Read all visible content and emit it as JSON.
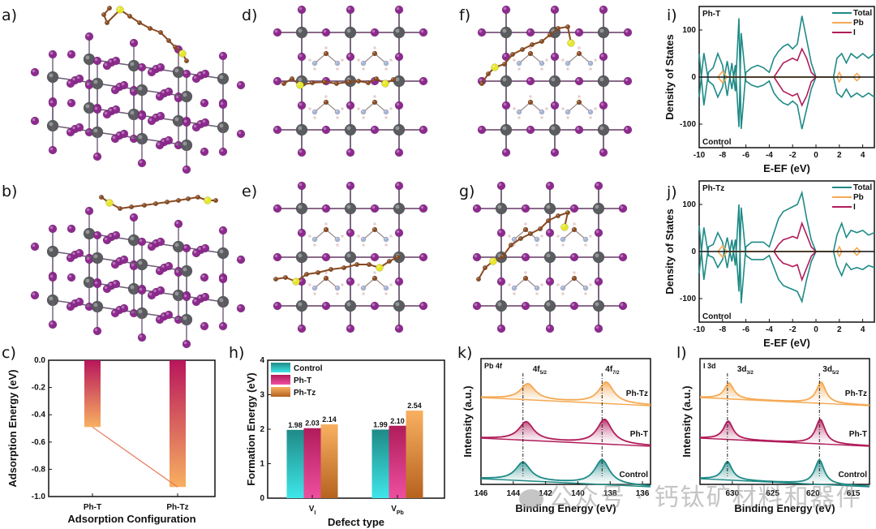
{
  "panel_labels": {
    "a": "a)",
    "b": "b)",
    "c": "c)",
    "d": "d)",
    "e": "e)",
    "f": "f)",
    "g": "g)",
    "h": "h)",
    "i": "i)",
    "j": "j)",
    "k": "k)",
    "l": "l)"
  },
  "colors": {
    "pb_atom": "#5a5c60",
    "i_atom": "#8e2a8f",
    "c_atom": "#8a4b22",
    "s_atom": "#e6e62a",
    "n_atom": "#a8b4d6",
    "h_atom": "#e8cfcf",
    "teal": "#1e8a86",
    "orange": "#f5a953",
    "crimson": "#b01c5a",
    "pink": "#ee4fa0",
    "cyan": "#3fe6ea",
    "brown": "#b6621f"
  },
  "structures": [
    {
      "id": "a",
      "view": "perspective",
      "adsorbate": "Ph-T"
    },
    {
      "id": "b",
      "view": "perspective",
      "adsorbate": "Ph-Tz"
    },
    {
      "id": "d",
      "view": "top",
      "adsorbate": "Ph-T",
      "defect": "flat"
    },
    {
      "id": "e",
      "view": "top",
      "adsorbate": "Ph-Tz",
      "defect": "flat"
    },
    {
      "id": "f",
      "view": "top",
      "adsorbate": "Ph-T",
      "defect": "tilted"
    },
    {
      "id": "g",
      "view": "top",
      "adsorbate": "Ph-Tz",
      "defect": "tilted"
    }
  ],
  "chart_data": [
    {
      "id": "c",
      "type": "bar",
      "title": "",
      "xlabel": "Adsorption Configuration",
      "ylabel": "Adsorption Energy (eV)",
      "categories": [
        "Ph-T",
        "Ph-Tz"
      ],
      "values": [
        -0.49,
        -0.93
      ],
      "ylim": [
        -1.0,
        0.0
      ],
      "yticks": [
        "0.0",
        "-0.2",
        "-0.4",
        "-0.6",
        "-0.8",
        "-1.0"
      ],
      "connector_line": true
    },
    {
      "id": "h",
      "type": "bar",
      "xlabel": "Defect type",
      "ylabel": "Formation Energy (eV)",
      "categories": [
        "V_I",
        "V_Pb"
      ],
      "category_labels": [
        {
          "main": "V",
          "sub": "I"
        },
        {
          "main": "V",
          "sub": "Pb"
        }
      ],
      "series": [
        {
          "name": "Control",
          "values": [
            1.98,
            1.99
          ],
          "data_labels": [
            "1.98",
            "1.99"
          ]
        },
        {
          "name": "Ph-T",
          "values": [
            2.03,
            2.1
          ],
          "data_labels": [
            "2.03",
            "2.10"
          ]
        },
        {
          "name": "Ph-Tz",
          "values": [
            2.14,
            2.54
          ],
          "data_labels": [
            "2.14",
            "2.54"
          ]
        }
      ],
      "ylim": [
        0,
        4
      ],
      "yticks": [
        "0",
        "1",
        "2",
        "3",
        "4"
      ],
      "legend": "top-left"
    },
    {
      "id": "i",
      "type": "line",
      "xlabel": "E-EF (eV)",
      "ylabel": "Density of States",
      "annotation_top": "Ph-T",
      "annotation_bottom": "Control",
      "xlim": [
        -10,
        5
      ],
      "ylim": [
        -150,
        150
      ],
      "xticks": [
        "-10",
        "-8",
        "-6",
        "-4",
        "-2",
        "0",
        "2",
        "4"
      ],
      "yticks": [
        "100",
        "0",
        "-100"
      ],
      "legend": "top-right",
      "series": [
        {
          "name": "Total"
        },
        {
          "name": "Pb"
        },
        {
          "name": "I"
        }
      ],
      "total_peaks": [
        [
          -10,
          50
        ],
        [
          -9.6,
          -60
        ],
        [
          -9.2,
          10
        ],
        [
          -8.8,
          20
        ],
        [
          -8.4,
          50
        ],
        [
          -8,
          25
        ],
        [
          -7.6,
          -40
        ],
        [
          -7.2,
          30
        ],
        [
          -6.9,
          -30
        ],
        [
          -6.6,
          125
        ],
        [
          -6.4,
          -110
        ],
        [
          -6.0,
          10
        ],
        [
          -5.5,
          20
        ],
        [
          -5.0,
          25
        ],
        [
          -4.5,
          20
        ],
        [
          -4.0,
          10
        ],
        [
          -3.6,
          40
        ],
        [
          -3.2,
          55
        ],
        [
          -2.8,
          65
        ],
        [
          -2.4,
          70
        ],
        [
          -2.0,
          60
        ],
        [
          -1.6,
          70
        ],
        [
          -1.2,
          130
        ],
        [
          -0.8,
          80
        ],
        [
          -0.4,
          30
        ],
        [
          0,
          0
        ],
        [
          1.5,
          0
        ],
        [
          1.8,
          40
        ],
        [
          2.2,
          50
        ],
        [
          2.6,
          30
        ],
        [
          3.0,
          50
        ],
        [
          3.5,
          40
        ],
        [
          4.0,
          50
        ],
        [
          4.5,
          40
        ],
        [
          5,
          50
        ]
      ],
      "i_peaks": [
        [
          -3.6,
          0
        ],
        [
          -3.2,
          15
        ],
        [
          -2.8,
          30
        ],
        [
          -2.4,
          35
        ],
        [
          -2.0,
          40
        ],
        [
          -1.6,
          35
        ],
        [
          -1.2,
          60
        ],
        [
          -0.8,
          40
        ],
        [
          -0.4,
          10
        ],
        [
          0,
          0
        ]
      ],
      "pb_peaks": [
        [
          -8.4,
          0
        ],
        [
          -8,
          12
        ],
        [
          -7.6,
          0
        ],
        [
          1.8,
          0
        ],
        [
          2,
          10
        ],
        [
          2.2,
          0
        ],
        [
          3.2,
          0
        ],
        [
          3.5,
          8
        ],
        [
          3.8,
          0
        ]
      ]
    },
    {
      "id": "j",
      "type": "line",
      "xlabel": "E-EF (eV)",
      "ylabel": "Density of States",
      "annotation_top": "Ph-Tz",
      "annotation_bottom": "Control",
      "xlim": [
        -10,
        5
      ],
      "ylim": [
        -150,
        150
      ],
      "xticks": [
        "-10",
        "-8",
        "-6",
        "-4",
        "-2",
        "0",
        "2",
        "4"
      ],
      "yticks": [
        "100",
        "0",
        "-100"
      ],
      "legend": "top-right",
      "series": [
        {
          "name": "Total"
        },
        {
          "name": "Pb"
        },
        {
          "name": "I"
        }
      ],
      "total_peaks": [
        [
          -10,
          55
        ],
        [
          -9.6,
          -60
        ],
        [
          -9.2,
          10
        ],
        [
          -8.8,
          15
        ],
        [
          -8.4,
          40
        ],
        [
          -8,
          20
        ],
        [
          -7.6,
          -35
        ],
        [
          -7.2,
          25
        ],
        [
          -6.9,
          -30
        ],
        [
          -6.6,
          100
        ],
        [
          -6.4,
          -110
        ],
        [
          -6.0,
          10
        ],
        [
          -5.5,
          20
        ],
        [
          -5.0,
          20
        ],
        [
          -4.5,
          20
        ],
        [
          -4.0,
          10
        ],
        [
          -3.6,
          40
        ],
        [
          -3.2,
          70
        ],
        [
          -2.8,
          85
        ],
        [
          -2.4,
          90
        ],
        [
          -2.0,
          95
        ],
        [
          -1.6,
          100
        ],
        [
          -1.2,
          125
        ],
        [
          -0.8,
          70
        ],
        [
          -0.4,
          25
        ],
        [
          0,
          0
        ],
        [
          1.5,
          0
        ],
        [
          1.8,
          35
        ],
        [
          2.2,
          60
        ],
        [
          2.6,
          30
        ],
        [
          3.0,
          45
        ],
        [
          3.5,
          40
        ],
        [
          4.0,
          45
        ],
        [
          4.5,
          35
        ],
        [
          5,
          40
        ]
      ],
      "i_peaks": [
        [
          -3.6,
          0
        ],
        [
          -3.2,
          15
        ],
        [
          -2.8,
          25
        ],
        [
          -2.4,
          28
        ],
        [
          -2.0,
          32
        ],
        [
          -1.6,
          28
        ],
        [
          -1.2,
          60
        ],
        [
          -0.8,
          35
        ],
        [
          -0.4,
          10
        ],
        [
          0,
          0
        ]
      ],
      "pb_peaks": [
        [
          -8.4,
          0
        ],
        [
          -8,
          12
        ],
        [
          -7.6,
          0
        ],
        [
          1.8,
          0
        ],
        [
          2,
          10
        ],
        [
          2.2,
          0
        ],
        [
          3.2,
          0
        ],
        [
          3.5,
          8
        ],
        [
          3.8,
          0
        ]
      ]
    },
    {
      "id": "k",
      "type": "line",
      "title": "Pb 4f",
      "xlabel": "Binding Energy (eV)",
      "ylabel": "Intensity (a.u.)",
      "xlim": [
        146,
        135.5
      ],
      "xticks": [
        "146",
        "144",
        "142",
        "140",
        "138",
        "136"
      ],
      "peak_labels": [
        {
          "main": "4f",
          "sub": "5/2"
        },
        {
          "main": "4f",
          "sub": "7/2"
        }
      ],
      "reference_lines": [
        143.4,
        138.5
      ],
      "series": [
        {
          "name": "Ph-Tz",
          "peaks": [
            143.1,
            138.25
          ]
        },
        {
          "name": "Ph-T",
          "peaks": [
            143.2,
            138.35
          ]
        },
        {
          "name": "Control",
          "peaks": [
            143.4,
            138.5
          ]
        }
      ]
    },
    {
      "id": "l",
      "type": "line",
      "title": "I 3d",
      "xlabel": "Binding Energy (eV)",
      "ylabel": "Intensity (a.u.)",
      "xlim": [
        634,
        613
      ],
      "xticks": [
        "630",
        "625",
        "620",
        "615"
      ],
      "peak_labels": [
        {
          "main": "3d",
          "sub": "3/2"
        },
        {
          "main": "3d",
          "sub": "5/2"
        }
      ],
      "reference_lines": [
        630.6,
        619.2
      ],
      "series": [
        {
          "name": "Ph-Tz",
          "peaks": [
            630.4,
            619.0
          ]
        },
        {
          "name": "Ph-T",
          "peaks": [
            630.5,
            619.1
          ]
        },
        {
          "name": "Control",
          "peaks": [
            630.6,
            619.2
          ]
        }
      ]
    }
  ],
  "watermark": "公众号 · 钙钛矿材料和器件"
}
